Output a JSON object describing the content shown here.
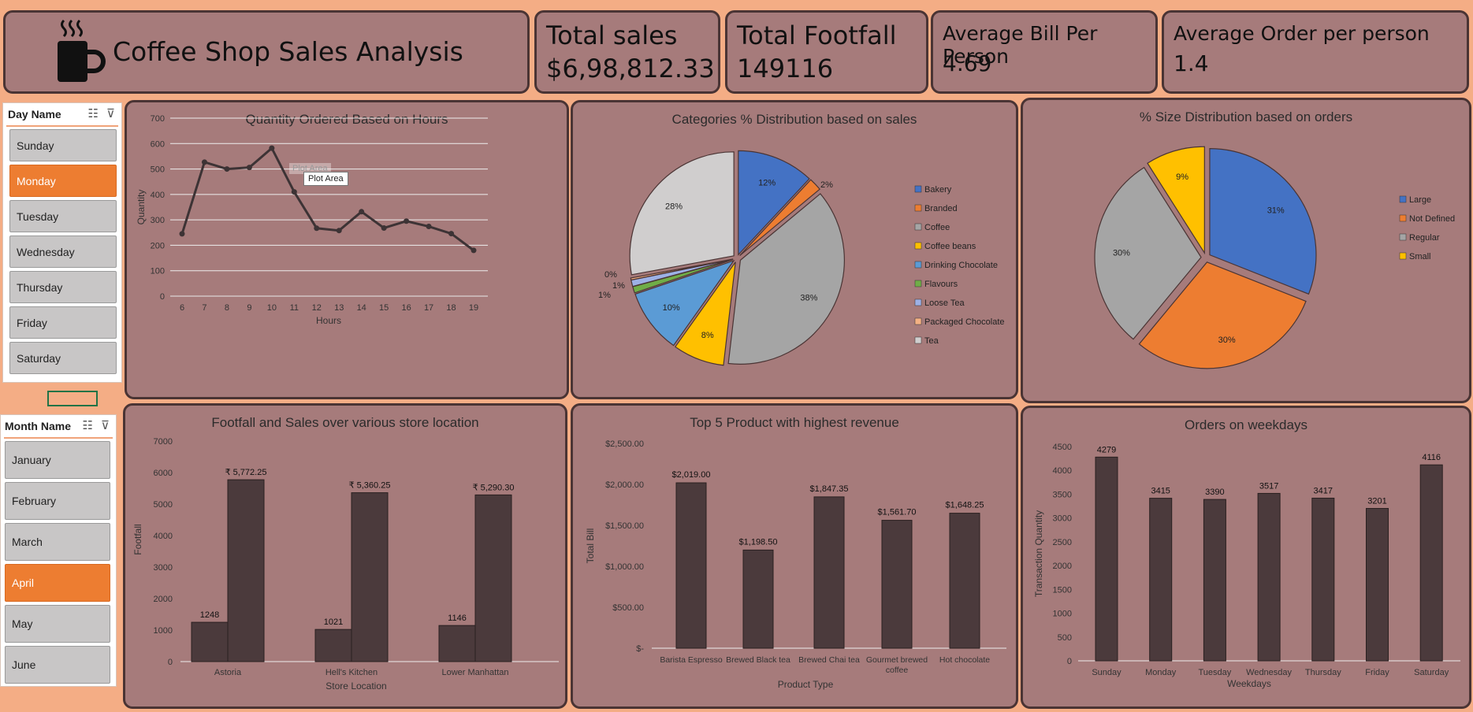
{
  "header": {
    "title": "Coffee Shop Sales Analysis",
    "icon": "coffee-mug-icon"
  },
  "kpis": [
    {
      "title": "Total sales",
      "value": "$6,98,812.33"
    },
    {
      "title": "Total Footfall",
      "value": "149116"
    },
    {
      "title": "Average Bill Per Person",
      "value": "4.69"
    },
    {
      "title": "Average Order per person",
      "value": "1.4"
    }
  ],
  "day_slicer": {
    "header": "Day Name",
    "items": [
      "Sunday",
      "Monday",
      "Tuesday",
      "Wednesday",
      "Thursday",
      "Friday",
      "Saturday"
    ],
    "selected": "Monday"
  },
  "month_slicer": {
    "header": "Month Name",
    "items": [
      "January",
      "February",
      "March",
      "April",
      "May",
      "June"
    ],
    "selected": "April"
  },
  "tooltip": {
    "ghost": "Plot Area",
    "label": "Plot Area"
  },
  "colors": {
    "bar": "#4b3a3c",
    "panel": "#a67b7b",
    "accent": "#ed7d31",
    "background": "#f4ad85"
  },
  "chart_data": [
    {
      "id": "hours",
      "type": "line",
      "title": "Quantity Ordered Based on Hours",
      "xlabel": "Hours",
      "ylabel": "Quantity",
      "x": [
        6,
        7,
        8,
        9,
        10,
        11,
        12,
        13,
        14,
        15,
        16,
        17,
        18,
        19
      ],
      "y": [
        245,
        527,
        500,
        506,
        582,
        410,
        267,
        258,
        332,
        268,
        295,
        274,
        246,
        180
      ],
      "ylim": [
        0,
        700
      ],
      "yticks": [
        0,
        100,
        200,
        300,
        400,
        500,
        600,
        700
      ],
      "grid": true
    },
    {
      "id": "categories",
      "type": "pie",
      "title": "Categories % Distribution based on sales",
      "legend_position": "right",
      "slices": [
        {
          "name": "Bakery",
          "value": 12,
          "label": "12%",
          "color": "#4472c4"
        },
        {
          "name": "Branded",
          "value": 2,
          "label": "2%",
          "color": "#ed7d31"
        },
        {
          "name": "Coffee",
          "value": 38,
          "label": "38%",
          "color": "#a5a5a5"
        },
        {
          "name": "Coffee beans",
          "value": 8,
          "label": "8%",
          "color": "#ffc000"
        },
        {
          "name": "Drinking Chocolate",
          "value": 10,
          "label": "10%",
          "color": "#5b9bd5"
        },
        {
          "name": "Flavours",
          "value": 1,
          "label": "1%",
          "color": "#70ad47"
        },
        {
          "name": "Loose Tea",
          "value": 1,
          "label": "1%",
          "color": "#9db1e6"
        },
        {
          "name": "Packaged Chocolate",
          "value": 0.3,
          "label": "0%",
          "color": "#f4b183"
        },
        {
          "name": "Tea",
          "value": 28,
          "label": "28%",
          "color": "#d0cece"
        }
      ]
    },
    {
      "id": "sizes",
      "type": "pie",
      "title": "% Size Distribution based on orders",
      "legend_position": "right",
      "slices": [
        {
          "name": "Large",
          "value": 31,
          "label": "31%",
          "color": "#4472c4"
        },
        {
          "name": "Not Defined",
          "value": 30,
          "label": "30%",
          "color": "#ed7d31"
        },
        {
          "name": "Regular",
          "value": 30,
          "label": "30%",
          "color": "#a5a5a5"
        },
        {
          "name": "Small",
          "value": 9,
          "label": "9%",
          "color": "#ffc000"
        }
      ]
    },
    {
      "id": "stores",
      "type": "bar",
      "title": "Footfall and Sales over various store location",
      "xlabel": "Store Location",
      "ylabel": "Footfall",
      "categories": [
        "Astoria",
        "Hell's Kitchen",
        "Lower Manhattan"
      ],
      "series": [
        {
          "values": [
            1248,
            1021,
            1146
          ],
          "labels": [
            "1248",
            "1021",
            "1146"
          ]
        },
        {
          "values": [
            5772.25,
            5360.25,
            5290.3
          ],
          "labels": [
            "₹ 5,772.25",
            "₹ 5,360.25",
            "₹ 5,290.30"
          ]
        }
      ],
      "ylim": [
        0,
        7000
      ],
      "yticks": [
        0,
        1000,
        2000,
        3000,
        4000,
        5000,
        6000,
        7000
      ]
    },
    {
      "id": "products",
      "type": "bar",
      "title": "Top 5 Product with highest revenue",
      "xlabel": "Product Type",
      "ylabel": "Total Bill",
      "categories": [
        "Barista Espresso",
        "Brewed Black tea",
        "Brewed Chai tea",
        "Gourmet brewed coffee",
        "Hot chocolate"
      ],
      "values": [
        2019.0,
        1198.5,
        1847.35,
        1561.7,
        1648.25
      ],
      "labels": [
        "$2,019.00",
        "$1,198.50",
        "$1,847.35",
        "$1,561.70",
        "$1,648.25"
      ],
      "ylim": [
        0,
        2500
      ],
      "yticks": [
        0,
        500,
        1000,
        1500,
        2000,
        2500
      ],
      "ytick_labels": [
        "$-",
        "$500.00",
        "$1,000.00",
        "$1,500.00",
        "$2,000.00",
        "$2,500.00"
      ]
    },
    {
      "id": "weekdays",
      "type": "bar",
      "title": "Orders on weekdays",
      "xlabel": "Weekdays",
      "ylabel": "Transaction Quantity",
      "categories": [
        "Sunday",
        "Monday",
        "Tuesday",
        "Wednesday",
        "Thursday",
        "Friday",
        "Saturday"
      ],
      "values": [
        4279,
        3415,
        3390,
        3517,
        3417,
        3201,
        4116
      ],
      "labels": [
        "4279",
        "3415",
        "3390",
        "3517",
        "3417",
        "3201",
        "4116"
      ],
      "ylim": [
        0,
        4500
      ],
      "yticks": [
        0,
        500,
        1000,
        1500,
        2000,
        2500,
        3000,
        3500,
        4000,
        4500
      ]
    }
  ]
}
